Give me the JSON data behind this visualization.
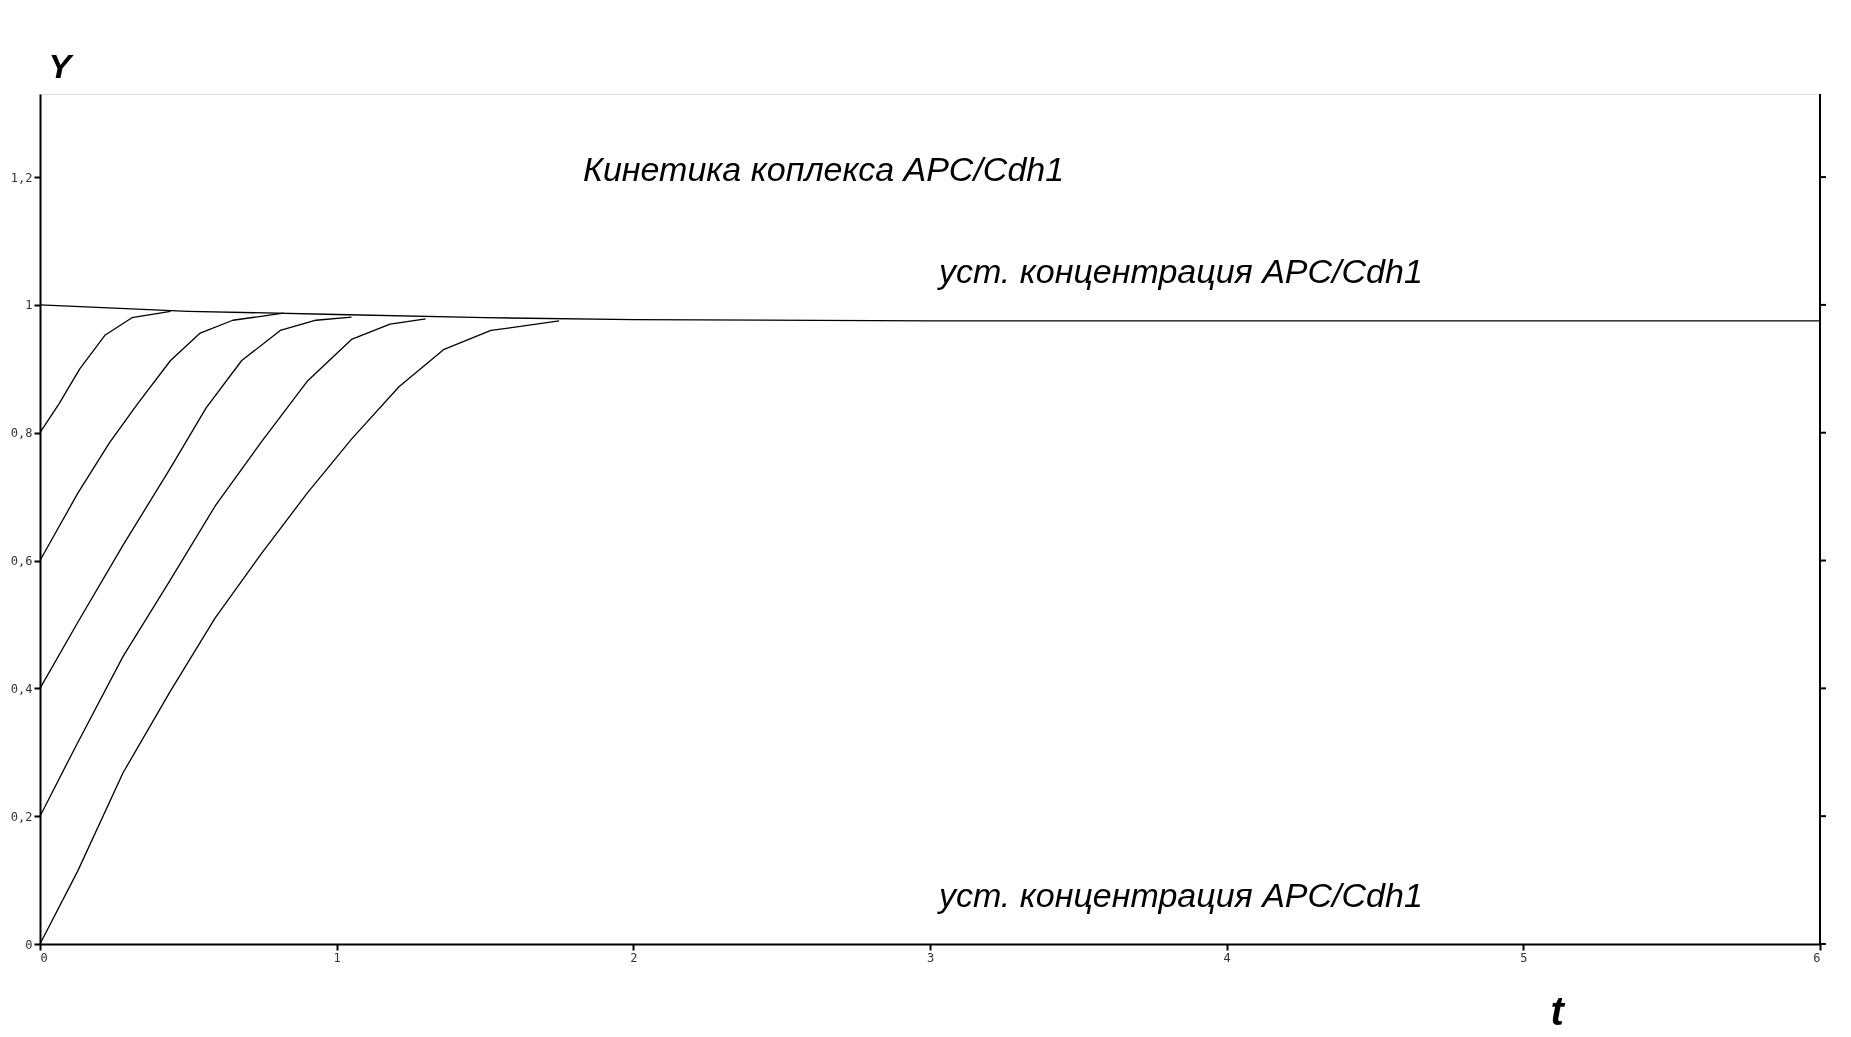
{
  "chart_data": {
    "type": "line",
    "title": "Кинетика коплекса APC/Cdh1",
    "xlabel": "t",
    "ylabel": "Y",
    "annotations": [
      "уст. концентрация APC/Cdh1",
      "уст. концентрация APC/Cdh1"
    ],
    "series": [
      {
        "color": "#000000",
        "x": [
          0,
          0.5,
          1,
          1.5,
          2,
          3,
          4,
          5,
          6
        ],
        "values": [
          1,
          0.99,
          0.985,
          0.98,
          0.977,
          0.975,
          0.975,
          0.975,
          0.975
        ]
      },
      {
        "color": "#000000",
        "x": [
          0,
          0.065,
          0.134,
          0.22,
          0.31,
          0.44
        ],
        "values": [
          0.8,
          0.846,
          0.9,
          0.953,
          0.98,
          0.99
        ]
      },
      {
        "color": "#000000",
        "x": [
          0,
          0.127,
          0.235,
          0.33,
          0.44,
          0.54,
          0.65,
          0.82
        ],
        "values": [
          0.6,
          0.705,
          0.785,
          0.846,
          0.913,
          0.956,
          0.976,
          0.987
        ]
      },
      {
        "color": "#000000",
        "x": [
          0,
          0.127,
          0.28,
          0.44,
          0.56,
          0.68,
          0.81,
          0.93,
          1.05
        ],
        "values": [
          0.4,
          0.503,
          0.624,
          0.745,
          0.839,
          0.913,
          0.96,
          0.976,
          0.981
        ]
      },
      {
        "color": "#000000",
        "x": [
          0,
          0.127,
          0.28,
          0.44,
          0.59,
          0.745,
          0.9,
          1.05,
          1.18,
          1.3
        ],
        "values": [
          0.2,
          0.315,
          0.45,
          0.57,
          0.685,
          0.785,
          0.88,
          0.946,
          0.97,
          0.978
        ]
      },
      {
        "color": "#000000",
        "x": [
          0,
          0.127,
          0.28,
          0.44,
          0.59,
          0.745,
          0.9,
          1.05,
          1.21,
          1.36,
          1.52,
          1.75
        ],
        "values": [
          0,
          0.114,
          0.268,
          0.396,
          0.51,
          0.61,
          0.705,
          0.79,
          0.872,
          0.93,
          0.96,
          0.975
        ]
      }
    ],
    "xlim": [
      0,
      6
    ],
    "xticks": [
      0,
      1,
      2,
      3,
      4,
      5,
      6
    ],
    "ylim": [
      0,
      1.33
    ],
    "yticks": [
      0,
      {
        "value": 0.2,
        "label": "0,2"
      },
      {
        "value": 0.4,
        "label": "0,4"
      },
      {
        "value": 0.6,
        "label": "0,6"
      },
      {
        "value": 0.8,
        "label": "0,8"
      },
      1,
      {
        "value": 1.2,
        "label": "1,2"
      }
    ],
    "grid": false,
    "marker": "none",
    "line_style": "solid"
  }
}
